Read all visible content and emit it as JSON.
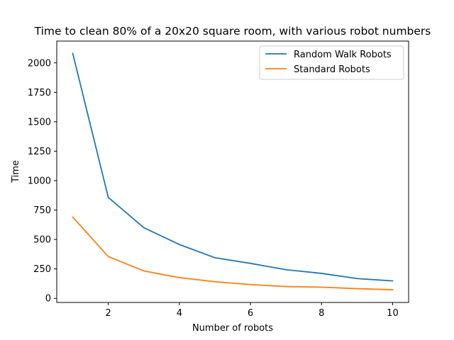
{
  "chart_data": {
    "type": "line",
    "title": "Time to clean 80% of a 20x20 square room, with various robot numbers",
    "xlabel": "Number of robots",
    "ylabel": "Time",
    "x": [
      1,
      2,
      3,
      4,
      5,
      6,
      7,
      8,
      9,
      10
    ],
    "xlim": [
      0.55,
      10.45
    ],
    "ylim": [
      -35,
      2185
    ],
    "xticks": [
      2,
      4,
      6,
      8,
      10
    ],
    "yticks": [
      0,
      250,
      500,
      750,
      1000,
      1250,
      1500,
      1750,
      2000
    ],
    "grid": false,
    "legend_position": "top-right",
    "series": [
      {
        "name": "Random Walk Robots",
        "color": "#1f77b4",
        "values": [
          2080,
          857,
          600,
          457,
          345,
          297,
          243,
          212,
          168,
          148
        ]
      },
      {
        "name": "Standard Robots",
        "color": "#ff7f0e",
        "values": [
          690,
          355,
          233,
          176,
          141,
          117,
          100,
          95,
          82,
          73
        ]
      }
    ]
  }
}
